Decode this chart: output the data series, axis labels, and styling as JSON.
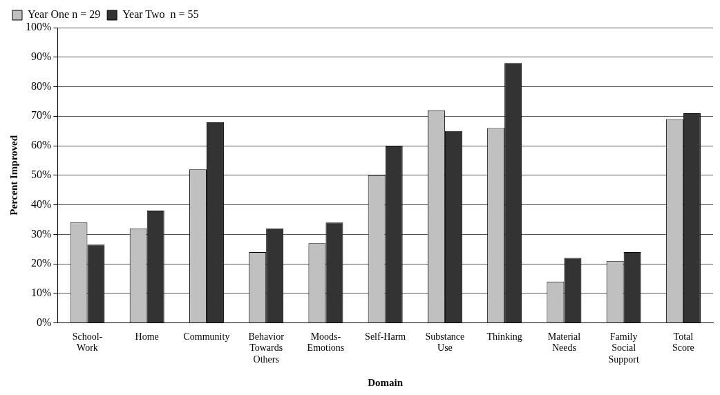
{
  "chart_data": {
    "type": "bar",
    "xlabel": "Domain",
    "ylabel": "Percent Improved",
    "categories": [
      "School-Work",
      "Home",
      "Community",
      "Behavior Towards Others",
      "Moods-Emotions",
      "Self-Harm",
      "Substance Use",
      "Thinking",
      "Material Needs",
      "Family Social Support",
      "Total Score"
    ],
    "series": [
      {
        "name": "Year One n = 29",
        "color": "#c0c0c0",
        "values": [
          34,
          32,
          52,
          24,
          27,
          50,
          72,
          66,
          14,
          21,
          69
        ]
      },
      {
        "name": "Year Two  n = 55",
        "color": "#333333",
        "values": [
          26.5,
          38,
          68,
          32,
          34,
          60,
          65,
          88,
          22,
          24,
          71
        ]
      }
    ],
    "ylim": [
      0,
      100
    ],
    "yticks": [
      {
        "value": 0,
        "label": "0%"
      },
      {
        "value": 10,
        "label": "10%"
      },
      {
        "value": 20,
        "label": "20%"
      },
      {
        "value": 30,
        "label": "30%"
      },
      {
        "value": 40,
        "label": "40%"
      },
      {
        "value": 50,
        "label": "50%"
      },
      {
        "value": 60,
        "label": "60%"
      },
      {
        "value": 70,
        "label": "70%"
      },
      {
        "value": 80,
        "label": "80%"
      },
      {
        "value": 90,
        "label": "90%"
      },
      {
        "value": 100,
        "label": "100%"
      }
    ],
    "grid": "y",
    "legend": "top left"
  }
}
